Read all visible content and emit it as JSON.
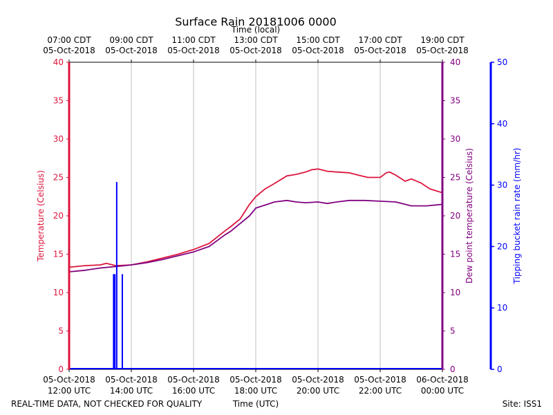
{
  "chart_data": {
    "type": "line",
    "title": "Surface Rain 20181006 0000",
    "top_axis_title": "Time (local)",
    "xlabel": "Time (UTC)",
    "footer_left": "REAL-TIME DATA, NOT CHECKED FOR QUALITY",
    "footer_right": "Site: ISS1",
    "x_range_hours": [
      0,
      12
    ],
    "bottom_ticks": [
      {
        "h": 0,
        "l1": "05-Oct-2018",
        "l2": "12:00 UTC"
      },
      {
        "h": 2,
        "l1": "05-Oct-2018",
        "l2": "14:00 UTC"
      },
      {
        "h": 4,
        "l1": "05-Oct-2018",
        "l2": "16:00 UTC"
      },
      {
        "h": 6,
        "l1": "05-Oct-2018",
        "l2": "18:00 UTC"
      },
      {
        "h": 8,
        "l1": "05-Oct-2018",
        "l2": "20:00 UTC"
      },
      {
        "h": 10,
        "l1": "05-Oct-2018",
        "l2": "22:00 UTC"
      },
      {
        "h": 12,
        "l1": "06-Oct-2018",
        "l2": "00:00 UTC"
      }
    ],
    "top_ticks": [
      {
        "h": 0,
        "l1": "07:00 CDT",
        "l2": "05-Oct-2018"
      },
      {
        "h": 2,
        "l1": "09:00 CDT",
        "l2": "05-Oct-2018"
      },
      {
        "h": 4,
        "l1": "11:00 CDT",
        "l2": "05-Oct-2018"
      },
      {
        "h": 6,
        "l1": "13:00 CDT",
        "l2": "05-Oct-2018"
      },
      {
        "h": 8,
        "l1": "15:00 CDT",
        "l2": "05-Oct-2018"
      },
      {
        "h": 10,
        "l1": "17:00 CDT",
        "l2": "05-Oct-2018"
      },
      {
        "h": 12,
        "l1": "19:00 CDT",
        "l2": "05-Oct-2018"
      }
    ],
    "y_left": {
      "label": "Temperature (Celsius)",
      "lim": [
        0,
        40
      ],
      "ticks": [
        0,
        5,
        10,
        15,
        20,
        25,
        30,
        35,
        40
      ],
      "color": "#dc143c"
    },
    "y_right": {
      "label": "Dew point temperature (Celsius)",
      "lim": [
        0,
        40
      ],
      "ticks": [
        0,
        5,
        10,
        15,
        20,
        25,
        30,
        35,
        40
      ],
      "color": "#800080"
    },
    "y_rain": {
      "label": "Tipping bucket rain rate (mm/hr)",
      "lim": [
        0,
        50
      ],
      "ticks": [
        0,
        10,
        20,
        30,
        40,
        50
      ],
      "color": "#0000ff"
    },
    "series": [
      {
        "name": "Temperature",
        "color": "#dc143c",
        "x": [
          0,
          0.5,
          1.0,
          1.2,
          1.5,
          2.0,
          2.5,
          3.0,
          3.5,
          4.0,
          4.5,
          5.0,
          5.2,
          5.5,
          5.8,
          6.0,
          6.3,
          6.6,
          7.0,
          7.3,
          7.6,
          7.8,
          8.0,
          8.3,
          8.6,
          9.0,
          9.3,
          9.6,
          10.0,
          10.2,
          10.3,
          10.5,
          10.8,
          11.0,
          11.3,
          11.6,
          12.0
        ],
        "values": [
          13.3,
          13.5,
          13.6,
          13.8,
          13.5,
          13.6,
          14.0,
          14.5,
          15.0,
          15.6,
          16.4,
          18.0,
          18.6,
          19.6,
          21.5,
          22.5,
          23.5,
          24.2,
          25.2,
          25.4,
          25.7,
          26.0,
          26.1,
          25.8,
          25.7,
          25.6,
          25.3,
          25.0,
          25.0,
          25.6,
          25.7,
          25.3,
          24.5,
          24.8,
          24.3,
          23.5,
          23.0
        ]
      },
      {
        "name": "Dew point",
        "color": "#800080",
        "x": [
          0,
          0.5,
          1.0,
          1.5,
          2.0,
          2.5,
          3.0,
          3.5,
          4.0,
          4.5,
          5.0,
          5.2,
          5.5,
          5.8,
          6.0,
          6.3,
          6.6,
          7.0,
          7.3,
          7.6,
          8.0,
          8.3,
          8.6,
          9.0,
          9.5,
          10.0,
          10.5,
          11.0,
          11.5,
          12.0
        ],
        "values": [
          12.7,
          12.9,
          13.2,
          13.4,
          13.6,
          13.9,
          14.3,
          14.8,
          15.3,
          16.0,
          17.5,
          18.0,
          19.0,
          20.0,
          21.0,
          21.4,
          21.8,
          22.0,
          21.8,
          21.7,
          21.8,
          21.6,
          21.8,
          22.0,
          22.0,
          21.9,
          21.8,
          21.3,
          21.3,
          21.5
        ]
      },
      {
        "name": "Rain rate",
        "color": "#0000ff",
        "axis": "rain",
        "x": [
          1.43,
          1.47,
          1.53,
          1.71
        ],
        "values": [
          15.5,
          15.5,
          30.5,
          15.5
        ]
      }
    ]
  }
}
